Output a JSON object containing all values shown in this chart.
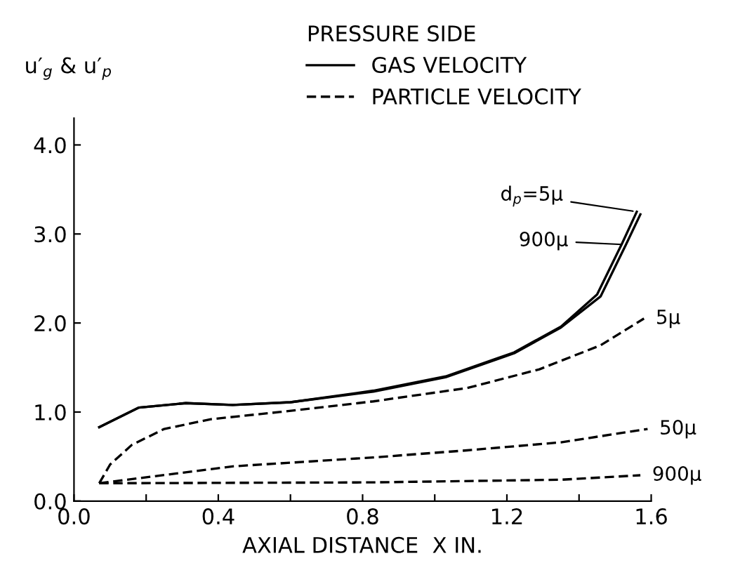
{
  "chart_data": {
    "type": "line",
    "xlabel": "AXIAL DISTANCE  X IN.",
    "ylabel": "u′$_{g}$ & u′$_{p}$",
    "legend_title": "PRESSURE SIDE",
    "legend": "top",
    "annotations": [
      "GAS VELOCITY",
      "PARTICLE VELOCITY"
    ],
    "xlim": [
      0,
      1.6
    ],
    "xticks": [
      {
        "value": 0,
        "label": "0.0"
      },
      {
        "value": 0.2,
        "label": null
      },
      0.4,
      {
        "value": 0.6,
        "label": null
      },
      0.8,
      {
        "value": 1.0,
        "label": null
      },
      1.2,
      {
        "value": 1.4,
        "label": null
      },
      1.6
    ],
    "ylim": [
      0,
      4.3
    ],
    "yticks": [
      {
        "value": 0,
        "label": "0.0"
      },
      {
        "value": 1,
        "label": "1.0"
      },
      {
        "value": 2,
        "label": "2.0"
      },
      {
        "value": 3,
        "label": "3.0"
      },
      {
        "value": 4,
        "label": "4.0"
      }
    ],
    "grid": false,
    "series": [
      {
        "name": "d$_{p}$=5μ",
        "color": "#000000",
        "line_style": "solid",
        "x": [
          0.07,
          0.18,
          0.31,
          0.44,
          0.6,
          0.83,
          1.03,
          1.22,
          1.35,
          1.45,
          1.52,
          1.56
        ],
        "values": [
          0.83,
          1.05,
          1.1,
          1.08,
          1.11,
          1.24,
          1.4,
          1.67,
          1.96,
          2.32,
          2.9,
          3.25
        ]
      },
      {
        "name": "900μ",
        "color": "#000000",
        "line_style": "solid",
        "x": [
          0.07,
          0.18,
          0.31,
          0.44,
          0.6,
          0.83,
          1.03,
          1.22,
          1.35,
          1.46,
          1.53,
          1.57
        ],
        "values": [
          0.83,
          1.05,
          1.1,
          1.08,
          1.11,
          1.23,
          1.39,
          1.66,
          1.95,
          2.3,
          2.88,
          3.22
        ]
      },
      {
        "name": "5μ",
        "color": "#000000",
        "line_style": "dashed",
        "x": [
          0.07,
          0.1,
          0.16,
          0.25,
          0.38,
          0.57,
          0.83,
          1.09,
          1.29,
          1.46,
          1.58
        ],
        "values": [
          0.2,
          0.41,
          0.63,
          0.81,
          0.92,
          1.0,
          1.12,
          1.27,
          1.48,
          1.75,
          2.05
        ]
      },
      {
        "name": "50μ",
        "color": "#000000",
        "line_style": "dashed",
        "x": [
          0.07,
          0.44,
          0.83,
          1.09,
          1.35,
          1.59
        ],
        "values": [
          0.2,
          0.39,
          0.49,
          0.57,
          0.66,
          0.81
        ]
      },
      {
        "name": "900μ",
        "color": "#000000",
        "line_style": "dashed",
        "x": [
          0.07,
          0.83,
          1.35,
          1.57
        ],
        "values": [
          0.2,
          0.21,
          0.24,
          0.29
        ]
      }
    ]
  }
}
